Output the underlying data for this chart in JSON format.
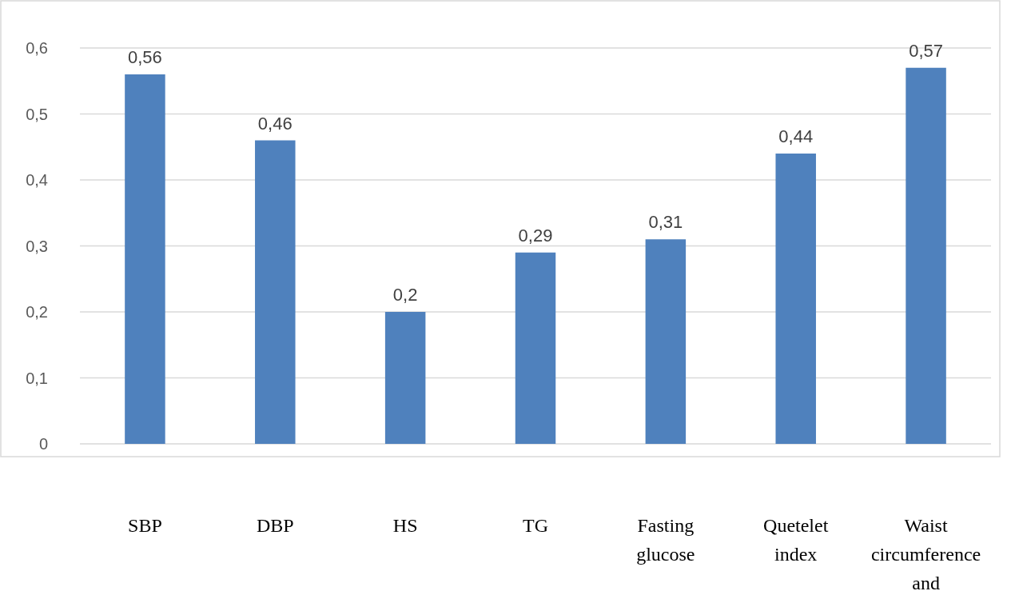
{
  "chart_data": {
    "type": "bar",
    "categories": [
      "SBP",
      "DBP",
      "HS",
      "TG",
      "Fasting glucose",
      "Quetelet index",
      "Waist circumference and"
    ],
    "values": [
      0.56,
      0.46,
      0.2,
      0.29,
      0.31,
      0.44,
      0.57
    ],
    "value_labels": [
      "0,56",
      "0,46",
      "0,2",
      "0,29",
      "0,31",
      "0,44",
      "0,57"
    ],
    "color": "#4f81bd",
    "ylim": [
      0,
      0.6
    ],
    "yticks": [
      {
        "value": 0,
        "label": "0"
      },
      {
        "value": 0.1,
        "label": "0,1"
      },
      {
        "value": 0.2,
        "label": "0,2"
      },
      {
        "value": 0.3,
        "label": "0,3"
      },
      {
        "value": 0.4,
        "label": "0,4"
      },
      {
        "value": 0.5,
        "label": "0,5"
      },
      {
        "value": 0.6,
        "label": "0,6"
      }
    ],
    "grid": "y"
  }
}
